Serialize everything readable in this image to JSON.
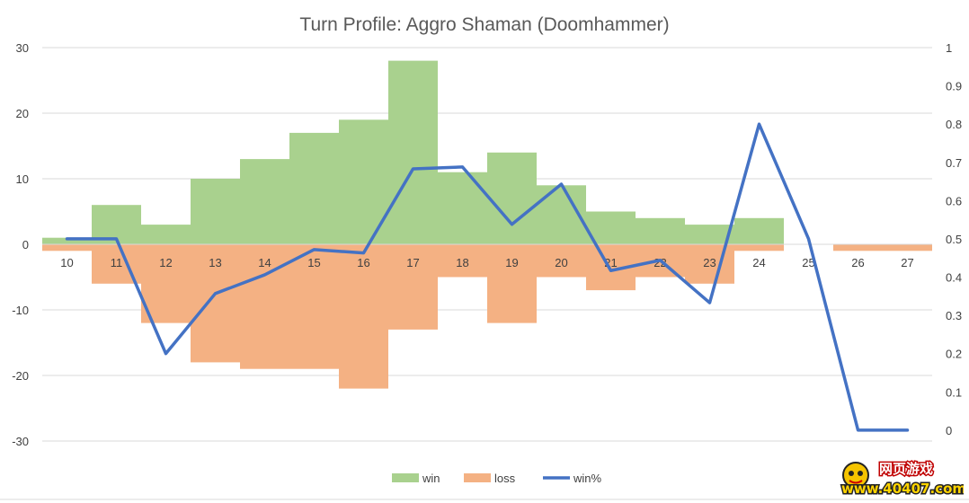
{
  "chart_data": {
    "type": "bar",
    "title": "Turn Profile: Aggro Shaman (Doomhammer)",
    "categories": [
      "10",
      "11",
      "12",
      "13",
      "14",
      "15",
      "16",
      "17",
      "18",
      "19",
      "20",
      "21",
      "22",
      "23",
      "24",
      "25",
      "26",
      "27"
    ],
    "series": [
      {
        "name": "win",
        "kind": "bar",
        "axis": "left",
        "color": "#a9d18e",
        "values": [
          1,
          6,
          3,
          10,
          13,
          17,
          19,
          28,
          11,
          14,
          9,
          5,
          4,
          3,
          4,
          0,
          0,
          0
        ]
      },
      {
        "name": "loss",
        "kind": "bar",
        "axis": "left",
        "color": "#f4b183",
        "values": [
          -1,
          -6,
          -12,
          -18,
          -19,
          -19,
          -22,
          -13,
          -5,
          -12,
          -5,
          -7,
          -5,
          -6,
          -1,
          0,
          -1,
          -1
        ]
      },
      {
        "name": "win%",
        "kind": "line",
        "axis": "right",
        "color": "#4472c4",
        "values": [
          0.5,
          0.5,
          0.2,
          0.357,
          0.406,
          0.472,
          0.463,
          0.683,
          0.688,
          0.538,
          0.643,
          0.417,
          0.444,
          0.333,
          0.8,
          0.5,
          0,
          0
        ]
      }
    ],
    "y_left": {
      "min": -40,
      "max": 30,
      "ticks": [
        30,
        20,
        10,
        0,
        -10,
        -20,
        -30
      ]
    },
    "y_right": {
      "min": -0.2,
      "max": 1,
      "ticks": [
        "1",
        "0.9",
        "0.8",
        "0.7",
        "0.6",
        "0.5",
        "0.4",
        "0.3",
        "0.2",
        "0.1",
        "0"
      ]
    },
    "grid": true,
    "legend_position": "bottom"
  },
  "watermark": {
    "line1": "网页游戏",
    "line2": "www.40407.com"
  }
}
